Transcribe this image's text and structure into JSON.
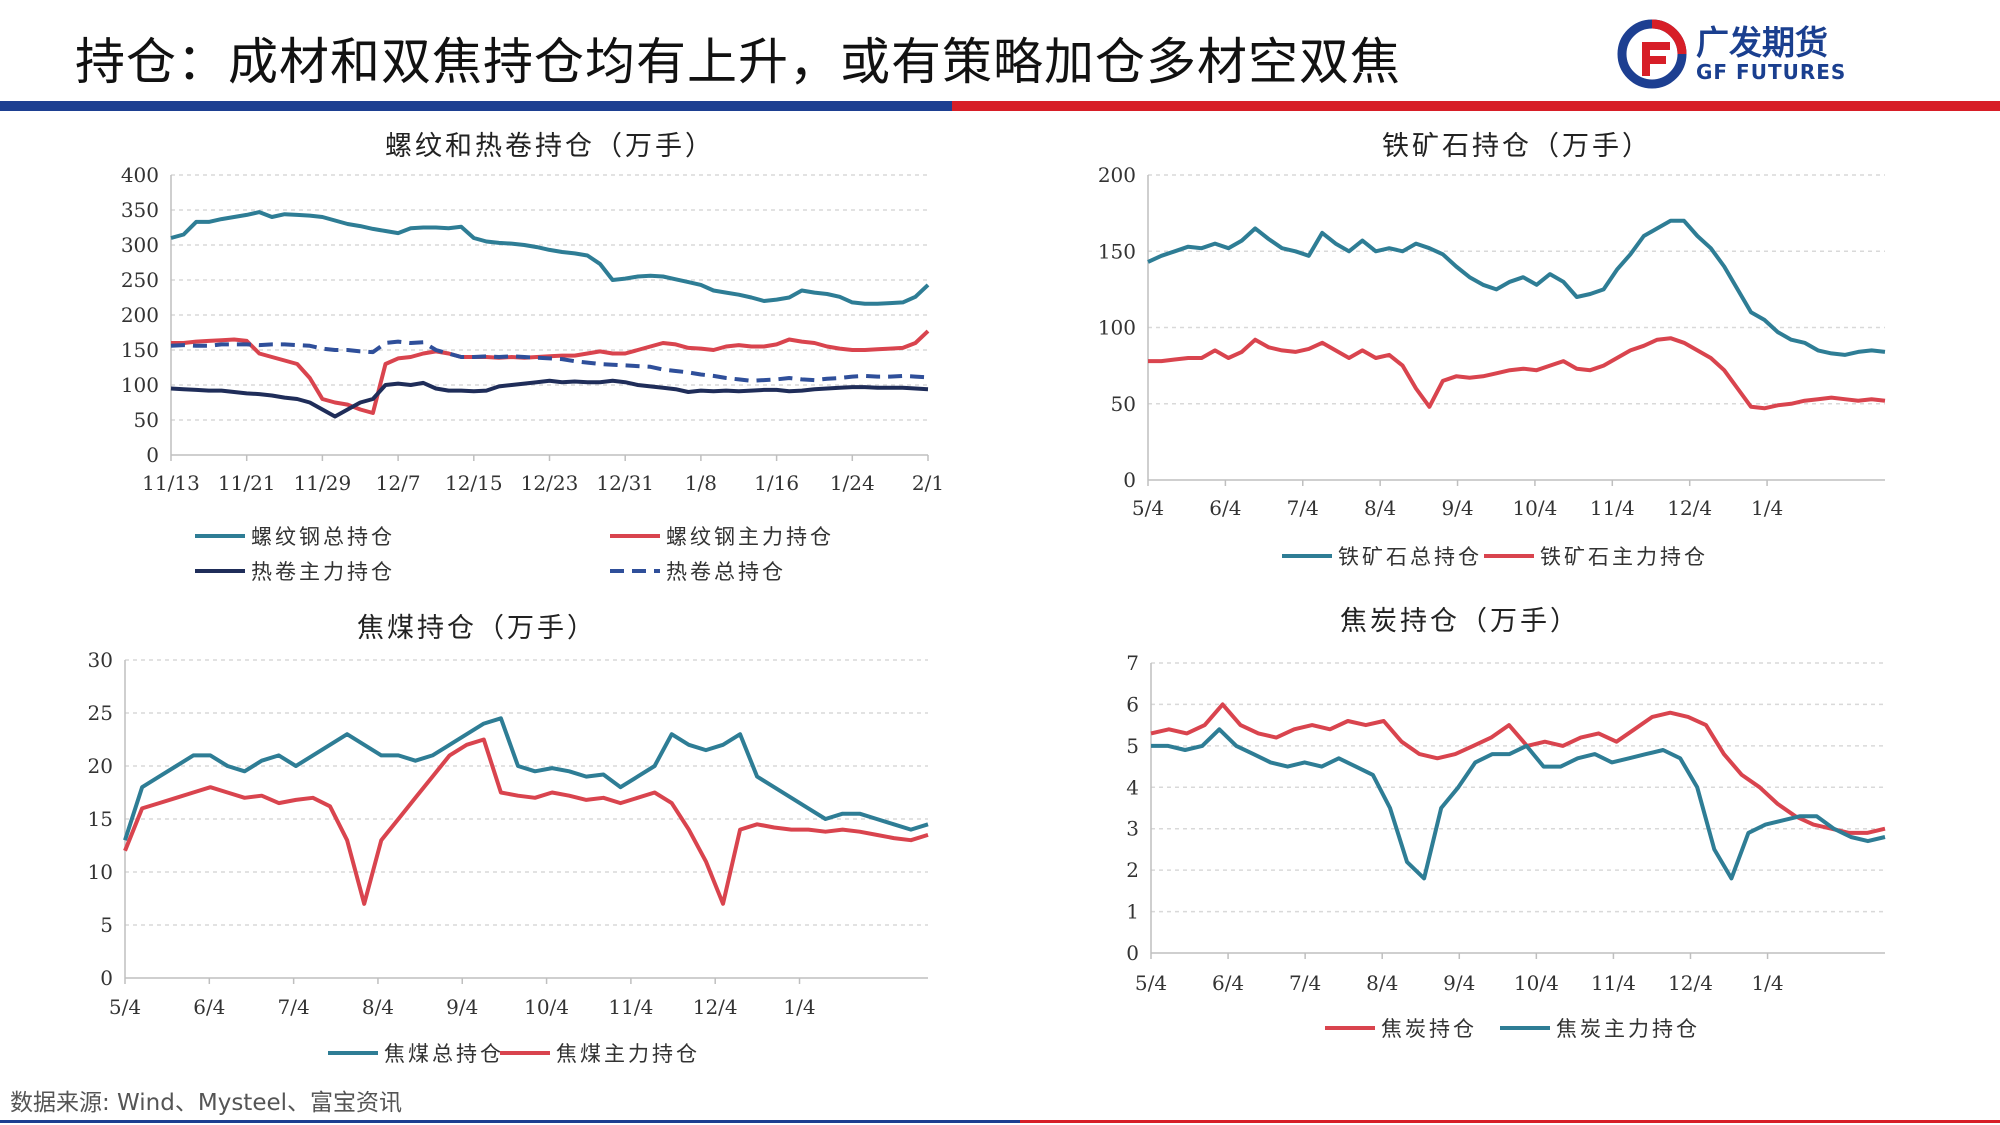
{
  "header": {
    "title": "持仓：成材和双焦持仓均有上升，或有策略加仓多材空双焦",
    "logo_cn": "广发期货",
    "logo_en": "GF FUTURES"
  },
  "footer": {
    "source": "数据来源: Wind、Mysteel、富宝资讯"
  },
  "colors": {
    "teal": "#2e7d95",
    "red": "#d9444e",
    "navy": "#1f2d59",
    "blue_dash": "#2f4f9a",
    "brand_blue": "#1d3f91",
    "brand_red": "#d71e27"
  },
  "chart_data": [
    {
      "type": "line",
      "title": "螺纹和热卷持仓（万手）",
      "ylim": [
        0,
        400
      ],
      "yticks": [
        0,
        50,
        100,
        150,
        200,
        250,
        300,
        350,
        400
      ],
      "xticks": [
        "11/13",
        "11/21",
        "11/29",
        "12/7",
        "12/15",
        "12/23",
        "12/31",
        "1/8",
        "1/16",
        "1/24",
        "2/1"
      ],
      "grid": true,
      "legend": "bottom",
      "series": [
        {
          "name": "螺纹钢总持仓",
          "style": "solid",
          "color": "#2e7d95",
          "values": [
            310,
            315,
            333,
            333,
            337,
            340,
            343,
            347,
            340,
            344,
            343,
            342,
            340,
            335,
            330,
            327,
            323,
            320,
            317,
            324,
            325,
            325,
            324,
            326,
            310,
            305,
            303,
            302,
            300,
            297,
            293,
            290,
            288,
            285,
            273,
            250,
            252,
            255,
            256,
            255,
            251,
            247,
            243,
            235,
            232,
            229,
            225,
            220,
            222,
            225,
            235,
            232,
            230,
            226,
            218,
            216,
            216,
            217,
            218,
            226,
            243
          ]
        },
        {
          "name": "螺纹钢主力持仓",
          "style": "solid",
          "color": "#d9444e",
          "values": [
            160,
            160,
            162,
            163,
            164,
            165,
            163,
            145,
            140,
            135,
            130,
            110,
            80,
            75,
            72,
            65,
            60,
            130,
            138,
            140,
            145,
            148,
            145,
            140,
            140,
            140,
            139,
            140,
            139,
            140,
            141,
            142,
            142,
            145,
            148,
            145,
            145,
            150,
            155,
            160,
            158,
            153,
            152,
            150,
            155,
            157,
            155,
            155,
            158,
            165,
            162,
            160,
            155,
            152,
            150,
            150,
            151,
            152,
            153,
            160,
            177
          ]
        },
        {
          "name": "热卷主力持仓",
          "style": "solid",
          "color": "#1f2d59",
          "values": [
            95,
            94,
            93,
            92,
            92,
            90,
            88,
            87,
            85,
            82,
            80,
            75,
            65,
            55,
            65,
            75,
            80,
            100,
            102,
            100,
            103,
            95,
            92,
            92,
            91,
            92,
            98,
            100,
            102,
            104,
            106,
            104,
            105,
            104,
            104,
            106,
            104,
            100,
            98,
            96,
            94,
            90,
            92,
            91,
            92,
            91,
            92,
            93,
            93,
            91,
            92,
            94,
            95,
            96,
            97,
            97,
            96,
            96,
            96,
            95,
            94
          ]
        },
        {
          "name": "热卷总持仓",
          "style": "dash",
          "color": "#2f4f9a",
          "values": [
            156,
            157,
            156,
            156,
            158,
            158,
            158,
            157,
            158,
            158,
            157,
            156,
            152,
            150,
            150,
            148,
            147,
            160,
            162,
            160,
            161,
            150,
            145,
            140,
            140,
            141,
            140,
            141,
            140,
            139,
            138,
            137,
            134,
            132,
            130,
            129,
            128,
            127,
            126,
            122,
            120,
            118,
            115,
            113,
            110,
            108,
            106,
            107,
            108,
            110,
            108,
            107,
            109,
            110,
            112,
            113,
            112,
            112,
            113,
            112,
            111
          ]
        }
      ]
    },
    {
      "type": "line",
      "title": "铁矿石持仓（万手）",
      "ylim": [
        0,
        200
      ],
      "yticks": [
        0,
        50,
        100,
        150,
        200
      ],
      "xticks": [
        "5/4",
        "6/4",
        "7/4",
        "8/4",
        "9/4",
        "10/4",
        "11/4",
        "12/4",
        "1/4"
      ],
      "grid": true,
      "legend": "bottom",
      "series": [
        {
          "name": "铁矿石总持仓",
          "style": "solid",
          "color": "#2e7d95",
          "values": [
            143,
            147,
            150,
            153,
            152,
            155,
            152,
            157,
            165,
            158,
            152,
            150,
            147,
            162,
            155,
            150,
            157,
            150,
            152,
            150,
            155,
            152,
            148,
            140,
            133,
            128,
            125,
            130,
            133,
            128,
            135,
            130,
            120,
            122,
            125,
            138,
            148,
            160,
            165,
            170,
            170,
            160,
            152,
            140,
            125,
            110,
            105,
            97,
            92,
            90,
            85,
            83,
            82,
            84,
            85,
            84
          ]
        },
        {
          "name": "铁矿石主力持仓",
          "style": "solid",
          "color": "#d9444e",
          "values": [
            78,
            78,
            79,
            80,
            80,
            85,
            80,
            84,
            92,
            87,
            85,
            84,
            86,
            90,
            85,
            80,
            85,
            80,
            82,
            75,
            60,
            48,
            65,
            68,
            67,
            68,
            70,
            72,
            73,
            72,
            75,
            78,
            73,
            72,
            75,
            80,
            85,
            88,
            92,
            93,
            90,
            85,
            80,
            72,
            60,
            48,
            47,
            49,
            50,
            52,
            53,
            54,
            53,
            52,
            53,
            52
          ]
        }
      ]
    },
    {
      "type": "line",
      "title": "焦煤持仓（万手）",
      "ylim": [
        0,
        30
      ],
      "yticks": [
        0,
        5,
        10,
        15,
        20,
        25,
        30
      ],
      "xticks": [
        "5/4",
        "6/4",
        "7/4",
        "8/4",
        "9/4",
        "10/4",
        "11/4",
        "12/4",
        "1/4"
      ],
      "grid": true,
      "legend": "bottom",
      "series": [
        {
          "name": "焦煤总持仓",
          "style": "solid",
          "color": "#2e7d95",
          "values": [
            13,
            18,
            19,
            20,
            21,
            21,
            20,
            19.5,
            20.5,
            21,
            20,
            21,
            22,
            23,
            22,
            21,
            21,
            20.5,
            21,
            22,
            23,
            24,
            24.5,
            20,
            19.5,
            19.8,
            19.5,
            19,
            19.2,
            18,
            19,
            20,
            23,
            22,
            21.5,
            22,
            23,
            19,
            18,
            17,
            16,
            15,
            15.5,
            15.5,
            15,
            14.5,
            14,
            14.5
          ]
        },
        {
          "name": "焦煤主力持仓",
          "style": "solid",
          "color": "#d9444e",
          "values": [
            12,
            16,
            16.5,
            17,
            17.5,
            18,
            17.5,
            17,
            17.2,
            16.5,
            16.8,
            17,
            16.2,
            13,
            7,
            13,
            15,
            17,
            19,
            21,
            22,
            22.5,
            17.5,
            17.2,
            17,
            17.5,
            17.2,
            16.8,
            17,
            16.5,
            17,
            17.5,
            16.5,
            14,
            11,
            7,
            14,
            14.5,
            14.2,
            14,
            14,
            13.8,
            14,
            13.8,
            13.5,
            13.2,
            13,
            13.5
          ]
        }
      ]
    },
    {
      "type": "line",
      "title": "焦炭持仓（万手）",
      "ylim": [
        0,
        7
      ],
      "yticks": [
        0,
        1,
        2,
        3,
        4,
        5,
        6,
        7
      ],
      "xticks": [
        "5/4",
        "6/4",
        "7/4",
        "8/4",
        "9/4",
        "10/4",
        "11/4",
        "12/4",
        "1/4"
      ],
      "grid": true,
      "legend": "bottom",
      "series": [
        {
          "name": "焦炭持仓",
          "style": "solid",
          "color": "#d9444e",
          "values": [
            5.3,
            5.4,
            5.3,
            5.5,
            6.0,
            5.5,
            5.3,
            5.2,
            5.4,
            5.5,
            5.4,
            5.6,
            5.5,
            5.6,
            5.1,
            4.8,
            4.7,
            4.8,
            5.0,
            5.2,
            5.5,
            5.0,
            5.1,
            5.0,
            5.2,
            5.3,
            5.1,
            5.4,
            5.7,
            5.8,
            5.7,
            5.5,
            4.8,
            4.3,
            4.0,
            3.6,
            3.3,
            3.1,
            3.0,
            2.9,
            2.9,
            3.0
          ]
        },
        {
          "name": "焦炭主力持仓",
          "style": "solid",
          "color": "#2e7d95",
          "values": [
            5.0,
            5.0,
            4.9,
            5.0,
            5.4,
            5.0,
            4.8,
            4.6,
            4.5,
            4.6,
            4.5,
            4.7,
            4.5,
            4.3,
            3.5,
            2.2,
            1.8,
            3.5,
            4.0,
            4.6,
            4.8,
            4.8,
            5.0,
            4.5,
            4.5,
            4.7,
            4.8,
            4.6,
            4.7,
            4.8,
            4.9,
            4.7,
            4.0,
            2.5,
            1.8,
            2.9,
            3.1,
            3.2,
            3.3,
            3.3,
            3.0,
            2.8,
            2.7,
            2.8
          ]
        }
      ]
    }
  ]
}
